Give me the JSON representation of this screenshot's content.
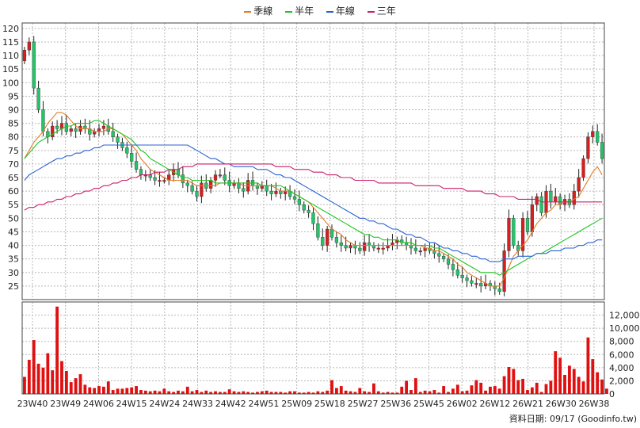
{
  "legend": [
    {
      "label": "季線",
      "color": "#e07b28"
    },
    {
      "label": "半年",
      "color": "#22c422"
    },
    {
      "label": "年線",
      "color": "#2a62d4"
    },
    {
      "label": "三年",
      "color": "#cc1f6a"
    }
  ],
  "source_label": "資料日期: 09/17  (Goodinfo.tw)",
  "colors": {
    "up": "#d81f1f",
    "down": "#25c46a",
    "volume": "#e01010",
    "wick": "#222222"
  },
  "chart_data": {
    "type": "candlestick",
    "x_tick_labels": [
      "23W40",
      "23W49",
      "24W06",
      "24W15",
      "24W24",
      "24W33",
      "24W42",
      "24W51",
      "25W09",
      "25W18",
      "25W27",
      "25W36",
      "25W45",
      "26W02",
      "26W12",
      "26W21",
      "26W30",
      "26W38"
    ],
    "price_axis": {
      "ylim": [
        20,
        122
      ],
      "ticks": [
        25,
        30,
        35,
        40,
        45,
        50,
        55,
        60,
        65,
        70,
        75,
        80,
        85,
        90,
        95,
        100,
        105,
        110,
        115,
        120
      ]
    },
    "volume_axis": {
      "ylim": [
        0,
        14000
      ],
      "ticks": [
        "0",
        "2,000",
        "4,000",
        "6,000",
        "8,000",
        "10,000",
        "12,000"
      ],
      "tick_values": [
        0,
        2000,
        4000,
        6000,
        8000,
        10000,
        12000
      ]
    },
    "close_weekly": [
      112,
      115,
      98,
      90,
      82,
      80,
      84,
      83,
      85,
      82,
      83,
      82,
      84,
      83,
      81,
      82,
      83,
      84,
      82,
      80,
      78,
      76,
      74,
      71,
      68,
      66,
      66,
      65,
      64,
      64,
      64,
      66,
      68,
      66,
      63,
      62,
      60,
      58,
      63,
      61,
      64,
      66,
      66,
      64,
      62,
      63,
      61,
      60,
      64,
      62,
      61,
      62,
      60,
      59,
      60,
      59,
      60,
      58,
      57,
      55,
      53,
      52,
      48,
      43,
      40,
      46,
      43,
      41,
      40,
      39,
      40,
      39,
      38,
      41,
      40,
      39,
      39,
      39,
      40,
      41,
      42,
      41,
      40,
      39,
      38,
      38,
      39,
      38,
      37,
      36,
      35,
      33,
      31,
      29,
      28,
      27,
      26,
      26,
      25,
      26,
      25,
      24,
      23,
      38,
      50,
      40,
      38,
      50,
      45,
      55,
      58,
      52,
      60,
      56,
      58,
      55,
      57,
      55,
      60,
      65,
      72,
      80,
      82,
      78,
      72
    ],
    "ma_quarter": [
      72,
      75,
      78,
      80,
      82,
      85,
      87,
      89,
      89,
      88,
      86,
      84,
      83,
      83,
      83,
      82,
      82,
      82,
      83,
      83,
      82,
      81,
      79,
      77,
      75,
      72,
      70,
      68,
      67,
      66,
      65,
      64,
      64,
      64,
      64,
      64,
      63,
      62,
      62,
      62,
      62,
      62,
      63,
      63,
      63,
      63,
      63,
      62,
      62,
      62,
      62,
      62,
      62,
      62,
      61,
      60,
      60,
      60,
      59,
      58,
      57,
      56,
      54,
      52,
      50,
      48,
      46,
      45,
      44,
      42,
      41,
      40,
      40,
      40,
      40,
      40,
      40,
      40,
      40,
      40,
      40,
      40,
      40,
      40,
      40,
      40,
      39,
      39,
      38,
      38,
      37,
      36,
      35,
      33,
      32,
      30,
      29,
      28,
      27,
      26,
      25,
      25,
      25,
      28,
      32,
      36,
      38,
      40,
      42,
      45,
      48,
      50,
      52,
      53,
      55,
      55,
      56,
      56,
      57,
      58,
      61,
      64,
      67,
      69,
      66
    ],
    "ma_half": [
      72,
      74,
      76,
      78,
      79,
      80,
      81,
      82,
      83,
      84,
      84,
      85,
      85,
      85,
      85,
      86,
      86,
      85,
      84,
      83,
      82,
      81,
      80,
      79,
      77,
      75,
      74,
      72,
      71,
      70,
      69,
      68,
      67,
      66,
      65,
      65,
      64,
      64,
      64,
      64,
      64,
      63,
      63,
      63,
      63,
      63,
      63,
      63,
      63,
      63,
      63,
      62,
      62,
      62,
      62,
      62,
      61,
      60,
      59,
      58,
      57,
      56,
      55,
      54,
      53,
      52,
      51,
      50,
      49,
      48,
      47,
      46,
      45,
      44,
      44,
      43,
      43,
      42,
      42,
      42,
      42,
      41,
      41,
      41,
      40,
      40,
      40,
      40,
      39,
      39,
      38,
      37,
      36,
      35,
      34,
      33,
      32,
      31,
      30,
      30,
      30,
      30,
      29,
      30,
      31,
      32,
      33,
      34,
      35,
      36,
      37,
      37,
      38,
      39,
      40,
      41,
      42,
      43,
      44,
      45,
      46,
      47,
      48,
      49,
      50
    ],
    "ma_year": [
      64,
      66,
      67,
      68,
      69,
      70,
      71,
      72,
      72,
      73,
      73,
      74,
      74,
      75,
      75,
      76,
      76,
      77,
      77,
      77,
      77,
      77,
      77,
      77,
      77,
      77,
      77,
      77,
      77,
      77,
      77,
      77,
      77,
      77,
      77,
      77,
      76,
      75,
      74,
      73,
      72,
      72,
      71,
      70,
      70,
      69,
      69,
      69,
      69,
      69,
      68,
      68,
      68,
      67,
      66,
      66,
      65,
      65,
      64,
      63,
      62,
      61,
      60,
      59,
      58,
      57,
      56,
      55,
      54,
      53,
      52,
      51,
      50,
      50,
      49,
      49,
      48,
      48,
      47,
      46,
      46,
      45,
      44,
      44,
      43,
      43,
      42,
      41,
      41,
      40,
      39,
      39,
      38,
      38,
      37,
      37,
      36,
      36,
      35,
      35,
      34,
      34,
      34,
      35,
      35,
      35,
      36,
      36,
      36,
      36,
      37,
      37,
      37,
      38,
      38,
      38,
      39,
      39,
      39,
      40,
      40,
      41,
      41,
      42,
      42
    ],
    "ma_3yr": [
      53,
      54,
      54,
      55,
      55,
      56,
      56,
      57,
      57,
      58,
      58,
      59,
      59,
      60,
      60,
      61,
      61,
      62,
      62,
      63,
      63,
      64,
      64,
      65,
      65,
      66,
      66,
      66,
      67,
      67,
      67,
      68,
      68,
      68,
      69,
      69,
      69,
      70,
      70,
      70,
      70,
      70,
      70,
      70,
      70,
      70,
      70,
      70,
      70,
      70,
      70,
      70,
      70,
      70,
      69,
      69,
      69,
      69,
      68,
      68,
      68,
      68,
      67,
      67,
      67,
      66,
      66,
      66,
      65,
      65,
      65,
      64,
      64,
      64,
      64,
      64,
      63,
      63,
      63,
      63,
      63,
      63,
      63,
      63,
      62,
      62,
      62,
      62,
      62,
      62,
      61,
      61,
      61,
      61,
      61,
      60,
      60,
      60,
      60,
      59,
      59,
      59,
      58,
      58,
      58,
      58,
      57,
      57,
      57,
      57,
      57,
      56,
      56,
      56,
      56,
      56,
      56,
      56,
      56,
      56,
      56,
      56,
      56,
      56,
      56
    ],
    "volume_weekly": [
      2600,
      5200,
      8200,
      4600,
      4000,
      6200,
      3600,
      13300,
      5000,
      3500,
      1800,
      2400,
      3000,
      1400,
      1000,
      900,
      1200,
      1100,
      1900,
      600,
      800,
      800,
      900,
      1000,
      1200,
      600,
      500,
      400,
      500,
      400,
      800,
      400,
      300,
      500,
      400,
      1100,
      400,
      600,
      300,
      500,
      300,
      400,
      300,
      300,
      700,
      400,
      300,
      400,
      300,
      200,
      300,
      400,
      500,
      300,
      300,
      300,
      200,
      400,
      400,
      200,
      200,
      300,
      200,
      400,
      300,
      500,
      2100,
      900,
      1200,
      500,
      400,
      300,
      900,
      400,
      300,
      1600,
      400,
      200,
      300,
      200,
      200,
      1100,
      2000,
      600,
      2400,
      300,
      500,
      400,
      600,
      200,
      1200,
      300,
      800,
      1400,
      400,
      500,
      1300,
      2100,
      1700,
      500,
      1100,
      1200,
      800,
      2700,
      4100,
      3800,
      2100,
      2300,
      600,
      1000,
      1700,
      300,
      1500,
      2000,
      6500,
      5500,
      2900,
      4300,
      3800,
      2600,
      1900,
      8600,
      5300,
      3300,
      2200,
      800
    ]
  }
}
